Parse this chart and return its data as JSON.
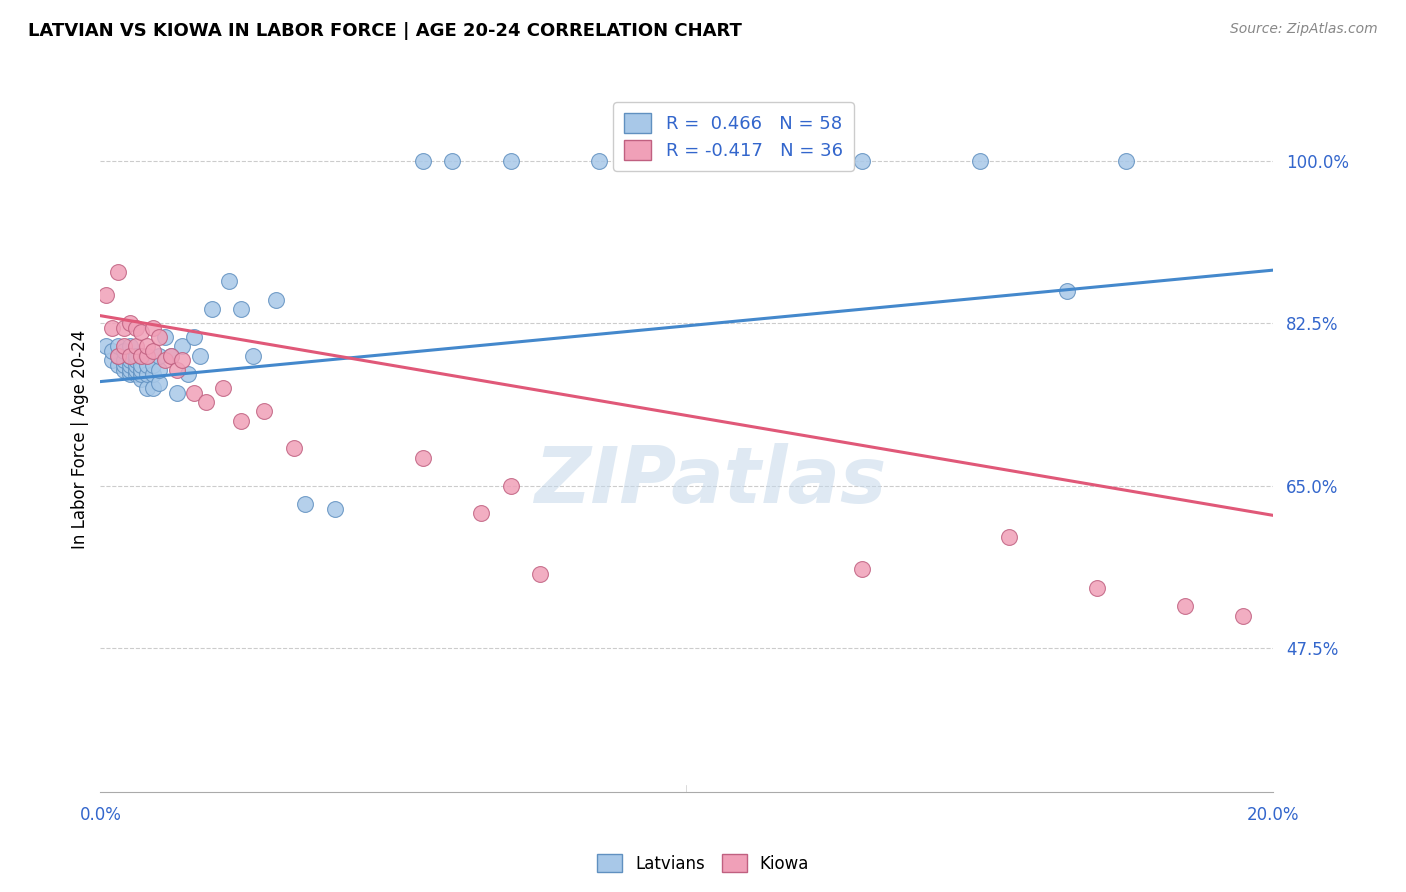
{
  "title": "LATVIAN VS KIOWA IN LABOR FORCE | AGE 20-24 CORRELATION CHART",
  "source": "Source: ZipAtlas.com",
  "ylabel": "In Labor Force | Age 20-24",
  "latvian_R": 0.466,
  "latvian_N": 58,
  "kiowa_R": -0.417,
  "kiowa_N": 36,
  "latvian_color": "#a8c8e8",
  "kiowa_color": "#f0a0b8",
  "latvian_edge": "#6090c0",
  "kiowa_edge": "#c06080",
  "latvian_line_color": "#4488cc",
  "kiowa_line_color": "#e05878",
  "watermark": "ZIPatlas",
  "background_color": "#ffffff",
  "grid_color": "#cccccc",
  "xlim": [
    0.0,
    0.2
  ],
  "ylim": [
    0.32,
    1.08
  ],
  "yticks": [
    0.475,
    0.65,
    0.825,
    1.0
  ],
  "ytick_labels": [
    "47.5%",
    "65.0%",
    "82.5%",
    "100.0%"
  ],
  "latvian_x": [
    0.001,
    0.002,
    0.002,
    0.003,
    0.003,
    0.003,
    0.004,
    0.004,
    0.004,
    0.004,
    0.005,
    0.005,
    0.005,
    0.005,
    0.005,
    0.005,
    0.006,
    0.006,
    0.006,
    0.006,
    0.006,
    0.007,
    0.007,
    0.007,
    0.007,
    0.007,
    0.008,
    0.008,
    0.008,
    0.009,
    0.009,
    0.009,
    0.01,
    0.01,
    0.01,
    0.011,
    0.012,
    0.013,
    0.014,
    0.015,
    0.016,
    0.017,
    0.019,
    0.022,
    0.024,
    0.026,
    0.03,
    0.035,
    0.04,
    0.055,
    0.06,
    0.07,
    0.085,
    0.11,
    0.13,
    0.15,
    0.165,
    0.175
  ],
  "latvian_y": [
    0.8,
    0.785,
    0.795,
    0.78,
    0.79,
    0.8,
    0.775,
    0.78,
    0.785,
    0.795,
    0.77,
    0.775,
    0.78,
    0.785,
    0.79,
    0.8,
    0.77,
    0.775,
    0.78,
    0.785,
    0.79,
    0.765,
    0.77,
    0.775,
    0.78,
    0.79,
    0.755,
    0.77,
    0.78,
    0.755,
    0.77,
    0.78,
    0.76,
    0.775,
    0.79,
    0.81,
    0.79,
    0.75,
    0.8,
    0.77,
    0.81,
    0.79,
    0.84,
    0.87,
    0.84,
    0.79,
    0.85,
    0.63,
    0.625,
    1.0,
    1.0,
    1.0,
    1.0,
    1.0,
    1.0,
    1.0,
    0.86,
    1.0
  ],
  "kiowa_x": [
    0.001,
    0.002,
    0.003,
    0.003,
    0.004,
    0.004,
    0.005,
    0.005,
    0.006,
    0.006,
    0.007,
    0.007,
    0.008,
    0.008,
    0.009,
    0.009,
    0.01,
    0.011,
    0.012,
    0.013,
    0.014,
    0.016,
    0.018,
    0.021,
    0.024,
    0.028,
    0.033,
    0.055,
    0.065,
    0.07,
    0.075,
    0.13,
    0.155,
    0.17,
    0.185,
    0.195
  ],
  "kiowa_y": [
    0.855,
    0.82,
    0.88,
    0.79,
    0.82,
    0.8,
    0.825,
    0.79,
    0.8,
    0.82,
    0.79,
    0.815,
    0.79,
    0.8,
    0.795,
    0.82,
    0.81,
    0.785,
    0.79,
    0.775,
    0.785,
    0.75,
    0.74,
    0.755,
    0.72,
    0.73,
    0.69,
    0.68,
    0.62,
    0.65,
    0.555,
    0.56,
    0.595,
    0.54,
    0.52,
    0.51
  ],
  "lv_trend_x": [
    0.0,
    0.2
  ],
  "lv_trend_y": [
    0.762,
    0.882
  ],
  "ki_trend_x": [
    0.0,
    0.2
  ],
  "ki_trend_y": [
    0.833,
    0.618
  ]
}
